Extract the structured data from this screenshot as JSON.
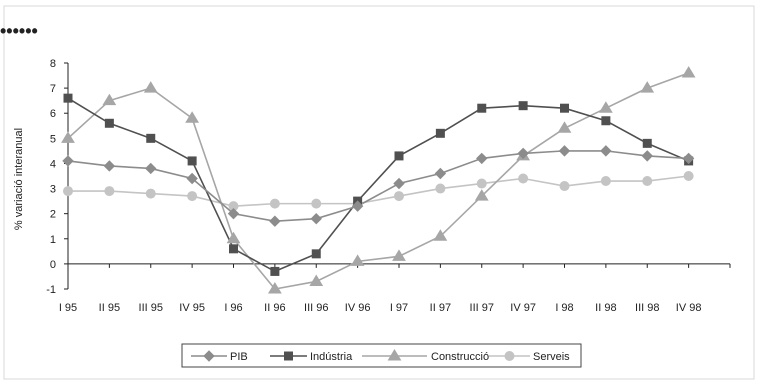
{
  "header": {
    "dots": "••••••"
  },
  "chart_data": {
    "type": "line",
    "title": "",
    "xlabel": "",
    "ylabel": "% variació interanual",
    "ylim": [
      -1,
      8
    ],
    "yticks": [
      "-1",
      "0",
      "1",
      "2",
      "3",
      "4",
      "5",
      "6",
      "7",
      "8"
    ],
    "grid": false,
    "legend_position": "bottom",
    "categories": [
      "I 95",
      "II 95",
      "III 95",
      "IV 95",
      "I 96",
      "II 96",
      "III 96",
      "IV 96",
      "I 97",
      "II 97",
      "III 97",
      "IV 97",
      "I 98",
      "II 98",
      "III 98",
      "IV 98"
    ],
    "series": [
      {
        "name": "PIB",
        "marker": "diamond",
        "color": "#8c8c8c",
        "values": [
          4.1,
          3.9,
          3.8,
          3.4,
          2.0,
          1.7,
          1.8,
          2.3,
          3.2,
          3.6,
          4.2,
          4.4,
          4.5,
          4.5,
          4.3,
          4.2
        ]
      },
      {
        "name": "Indústria",
        "marker": "square",
        "color": "#505050",
        "values": [
          6.6,
          5.6,
          5.0,
          4.1,
          0.6,
          -0.3,
          0.4,
          2.5,
          4.3,
          5.2,
          6.2,
          6.3,
          6.2,
          5.7,
          4.8,
          4.1
        ]
      },
      {
        "name": "Construcció",
        "marker": "triangle",
        "color": "#a6a6a6",
        "values": [
          5.0,
          6.5,
          7.0,
          5.8,
          1.0,
          -1.0,
          -0.7,
          0.1,
          0.3,
          1.1,
          2.7,
          4.3,
          5.4,
          6.2,
          7.0,
          7.6
        ]
      },
      {
        "name": "Serveis",
        "marker": "circle",
        "color": "#c4c4c4",
        "values": [
          2.9,
          2.9,
          2.8,
          2.7,
          2.3,
          2.4,
          2.4,
          2.4,
          2.7,
          3.0,
          3.2,
          3.4,
          3.1,
          3.3,
          3.3,
          3.5
        ]
      }
    ]
  }
}
